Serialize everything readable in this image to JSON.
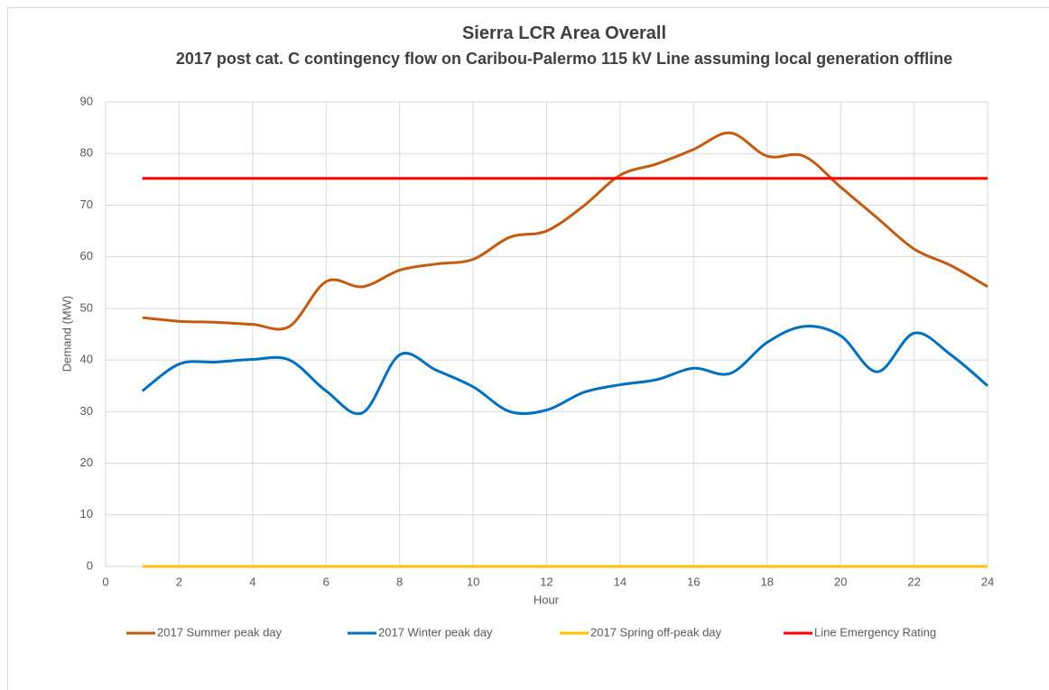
{
  "chart_data": {
    "type": "line",
    "title": "Sierra LCR Area Overall",
    "subtitle": "2017 post cat. C contingency flow on Caribou-Palermo 115 kV Line assuming local generation offline",
    "x_label": "Hour",
    "y_label": "Demand (MW)",
    "x": [
      1,
      2,
      3,
      4,
      5,
      6,
      7,
      8,
      9,
      10,
      11,
      12,
      13,
      14,
      15,
      16,
      17,
      18,
      19,
      20,
      21,
      22,
      23,
      24
    ],
    "series": [
      {
        "name": "2017 Summer peak day",
        "color": "#c55a11",
        "values": [
          48.2,
          47.5,
          47.3,
          46.9,
          46.5,
          55.2,
          54.2,
          57.4,
          58.6,
          59.5,
          63.8,
          65,
          69.8,
          75.8,
          78,
          80.8,
          84,
          79.5,
          79.5,
          73.5,
          67.5,
          61.5,
          58.3,
          54.2
        ]
      },
      {
        "name": "2017 Winter peak day",
        "color": "#0070c0",
        "values": [
          34,
          39.2,
          39.6,
          40.1,
          40,
          34,
          29.8,
          41,
          38,
          34.8,
          30,
          30.3,
          33.7,
          35.2,
          36.2,
          38.4,
          37.4,
          43.4,
          46.5,
          44.7,
          37.7,
          45.2,
          41,
          35
        ]
      },
      {
        "name": "2017 Spring off-peak day",
        "color": "#ffc000",
        "values": [
          0,
          0,
          0,
          0,
          0,
          0,
          0,
          0,
          0,
          0,
          0,
          0,
          0,
          0,
          0,
          0,
          0,
          0,
          0,
          0,
          0,
          0,
          0,
          0
        ]
      },
      {
        "name": "Line Emergency Rating",
        "color": "#ff0000",
        "values": [
          75.2,
          75.2,
          75.2,
          75.2,
          75.2,
          75.2,
          75.2,
          75.2,
          75.2,
          75.2,
          75.2,
          75.2,
          75.2,
          75.2,
          75.2,
          75.2,
          75.2,
          75.2,
          75.2,
          75.2,
          75.2,
          75.2,
          75.2,
          75.2
        ]
      }
    ],
    "xlim": [
      0,
      24
    ],
    "xticks": [
      0,
      2,
      4,
      6,
      8,
      10,
      12,
      14,
      16,
      18,
      20,
      22,
      24
    ],
    "ylim": [
      0,
      90
    ],
    "yticks": [
      0,
      10,
      20,
      30,
      40,
      50,
      60,
      70,
      80,
      90
    ],
    "grid": true,
    "smooth": true,
    "legend": "bottom"
  }
}
